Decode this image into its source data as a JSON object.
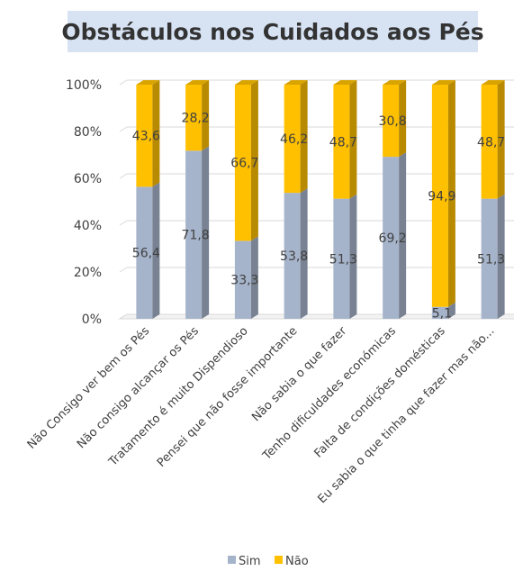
{
  "chart_data": {
    "type": "bar",
    "stacked": true,
    "percent_stacked": true,
    "title": "Obstáculos nos Cuidados aos Pés",
    "categories": [
      "Não Consigo ver bem os Pés",
      "Não consigo alcançar os Pés",
      "Tratamento é muito Dispendioso",
      "Pensei que não fosse importante",
      "Não sabia o que fazer",
      "Tenho dificuldades económicas",
      "Falta de condições domésticas",
      "Eu sabia o que tinha que fazer mas não..."
    ],
    "series": [
      {
        "name": "Sim",
        "values": [
          56.4,
          71.8,
          33.3,
          53.8,
          51.3,
          69.2,
          5.1,
          51.3
        ],
        "labels": [
          "56,4",
          "71,8",
          "33,3",
          "53,8",
          "51,3",
          "69,2",
          "5,1",
          "51,3"
        ],
        "color": "#a6b4cb"
      },
      {
        "name": "Não",
        "values": [
          43.6,
          28.2,
          66.7,
          46.2,
          48.7,
          30.8,
          94.9,
          48.7
        ],
        "labels": [
          "43,6",
          "28,2",
          "66,7",
          "46,2",
          "48,7",
          "30,8",
          "94,9",
          "48,7"
        ],
        "color": "#ffc000"
      }
    ],
    "ylim": [
      0,
      100
    ],
    "yticks": [
      0,
      20,
      40,
      60,
      80,
      100
    ],
    "ytick_labels": [
      "0%",
      "20%",
      "40%",
      "60%",
      "80%",
      "100%"
    ],
    "grid": true,
    "legend_position": "bottom",
    "xlabel": "",
    "ylabel": ""
  }
}
